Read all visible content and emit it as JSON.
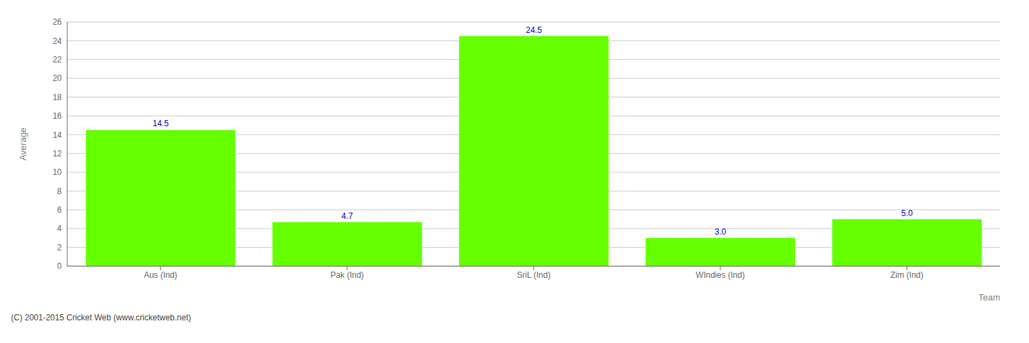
{
  "chart_data": {
    "type": "bar",
    "categories": [
      "Aus (Ind)",
      "Pak (Ind)",
      "SriL (Ind)",
      "WIndies (Ind)",
      "Zim (Ind)"
    ],
    "values": [
      14.5,
      4.7,
      24.5,
      3.0,
      5.0
    ],
    "value_labels": [
      "14.5",
      "4.7",
      "24.5",
      "3.0",
      "5.0"
    ],
    "data_labels": true,
    "color": "#66ff00",
    "xlabel": "Team",
    "ylabel": "Average",
    "ylim": [
      0,
      26
    ],
    "yticks": [
      0,
      2,
      4,
      6,
      8,
      10,
      12,
      14,
      16,
      18,
      20,
      22,
      24,
      26
    ],
    "grid": true,
    "annotations": [
      "(C) 2001-2015 Cricket Web (www.cricketweb.net)"
    ]
  }
}
